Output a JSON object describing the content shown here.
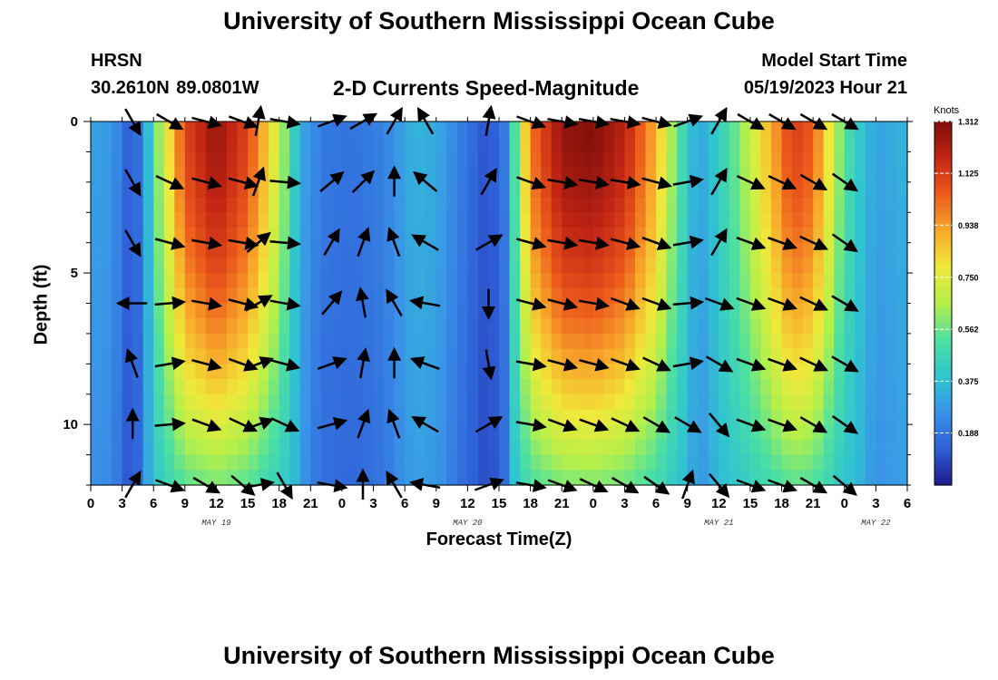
{
  "header": {
    "title": "University of Southern Mississippi Ocean Cube",
    "station": "HRSN",
    "latlon": "30.2610N  89.0801W",
    "subtitle": "2-D Currents Speed-Magnitude",
    "model_start_label": "Model Start Time",
    "model_start_value": "05/19/2023 Hour 21"
  },
  "footer": {
    "title": "University of Southern Mississippi Ocean Cube"
  },
  "chart_data": {
    "type": "heatmap",
    "title": "2-D Currents Speed-Magnitude",
    "xlabel": "Forecast Time(Z)",
    "ylabel": "Depth (ft)",
    "x_tick_labels": [
      "0",
      "3",
      "6",
      "9",
      "12",
      "15",
      "18",
      "21",
      "0",
      "3",
      "6",
      "9",
      "12",
      "15",
      "18",
      "21",
      "0",
      "3",
      "6",
      "9",
      "12",
      "15",
      "18",
      "21",
      "0",
      "3",
      "6"
    ],
    "x_hours": [
      0,
      78
    ],
    "day_labels": [
      {
        "label": "MAY 19",
        "hour": 12
      },
      {
        "label": "MAY 20",
        "hour": 36
      },
      {
        "label": "MAY 21",
        "hour": 60
      },
      {
        "label": "MAY 22",
        "hour": 75
      }
    ],
    "y_tick_labels": [
      "0",
      "5",
      "10"
    ],
    "ylim": [
      0,
      12
    ],
    "y_reversed": true,
    "colorbar": {
      "unit": "Knots",
      "ticks": [
        "1.312",
        "1.125",
        "0.938",
        "0.750",
        "0.562",
        "0.375",
        "0.188"
      ],
      "min": 0,
      "max": 1.312
    },
    "colormap": [
      "#1e1a8a",
      "#2f5fd8",
      "#3a94e8",
      "#2fc5d0",
      "#4ee0a0",
      "#b4f04a",
      "#f0e83a",
      "#f8a82a",
      "#ec5a1c",
      "#c42614",
      "#7c0d0a"
    ],
    "speed_keyframes": [
      {
        "hour": 0,
        "speed": 0.3
      },
      {
        "hour": 2,
        "speed": 0.28
      },
      {
        "hour": 4,
        "speed": 0.1
      },
      {
        "hour": 5,
        "speed": 0.25
      },
      {
        "hour": 6.5,
        "speed": 0.62
      },
      {
        "hour": 9,
        "speed": 1.1
      },
      {
        "hour": 12,
        "speed": 1.27
      },
      {
        "hour": 15,
        "speed": 1.1
      },
      {
        "hour": 18,
        "speed": 0.7
      },
      {
        "hour": 20,
        "speed": 0.33
      },
      {
        "hour": 22,
        "speed": 0.2
      },
      {
        "hour": 25,
        "speed": 0.18
      },
      {
        "hour": 28,
        "speed": 0.22
      },
      {
        "hour": 31,
        "speed": 0.35
      },
      {
        "hour": 33,
        "speed": 0.32
      },
      {
        "hour": 35,
        "speed": 0.22
      },
      {
        "hour": 38,
        "speed": 0.1
      },
      {
        "hour": 39.5,
        "speed": 0.2
      },
      {
        "hour": 42,
        "speed": 1.0
      },
      {
        "hour": 45,
        "speed": 1.27
      },
      {
        "hour": 48,
        "speed": 1.3
      },
      {
        "hour": 51,
        "speed": 1.2
      },
      {
        "hour": 54,
        "speed": 0.9
      },
      {
        "hour": 56,
        "speed": 0.55
      },
      {
        "hour": 58,
        "speed": 0.3
      },
      {
        "hour": 61,
        "speed": 0.5
      },
      {
        "hour": 64,
        "speed": 0.8
      },
      {
        "hour": 67,
        "speed": 1.12
      },
      {
        "hour": 69,
        "speed": 1.05
      },
      {
        "hour": 72,
        "speed": 0.52
      },
      {
        "hour": 75,
        "speed": 0.3
      },
      {
        "hour": 78,
        "speed": 0.35
      }
    ],
    "arrow_depths": [
      0,
      2,
      4,
      6,
      8,
      10,
      12
    ],
    "arrows": [
      {
        "hour": 23,
        "angles": [
          20,
          40,
          60,
          50,
          20,
          15,
          -10
        ]
      },
      {
        "hour": 26,
        "angles": [
          30,
          45,
          70,
          100,
          80,
          70,
          90
        ]
      },
      {
        "hour": 29,
        "angles": [
          60,
          90,
          110,
          120,
          90,
          110,
          120
        ]
      },
      {
        "hour": 32,
        "angles": [
          120,
          140,
          150,
          170,
          160,
          150,
          170
        ]
      },
      {
        "hour": 16,
        "angles": [
          80,
          70,
          40,
          30,
          20,
          20,
          10
        ]
      },
      {
        "hour": 4,
        "angles": [
          -60,
          -60,
          -60,
          180,
          110,
          90,
          60
        ]
      },
      {
        "hour": 7.5,
        "angles": [
          -30,
          -25,
          -15,
          5,
          10,
          5,
          -20
        ]
      },
      {
        "hour": 11,
        "angles": [
          -15,
          -15,
          -10,
          -10,
          -15,
          -20,
          -30
        ]
      },
      {
        "hour": 14.5,
        "angles": [
          -20,
          -15,
          -10,
          -15,
          -20,
          -25,
          -40
        ]
      },
      {
        "hour": 18.5,
        "angles": [
          -10,
          -5,
          -5,
          -10,
          -15,
          -25,
          -60
        ]
      },
      {
        "hour": 38,
        "angles": [
          80,
          60,
          30,
          -90,
          -80,
          30,
          20
        ]
      },
      {
        "hour": 42,
        "angles": [
          -20,
          -20,
          -15,
          -15,
          -10,
          -10,
          -10
        ]
      },
      {
        "hour": 45,
        "angles": [
          -10,
          -10,
          -10,
          -15,
          -15,
          -20,
          -20
        ]
      },
      {
        "hour": 48,
        "angles": [
          -10,
          -10,
          -10,
          -10,
          -15,
          -20,
          -25
        ]
      },
      {
        "hour": 51,
        "angles": [
          -10,
          -10,
          -15,
          -20,
          -20,
          -25,
          -30
        ]
      },
      {
        "hour": 54,
        "angles": [
          -15,
          -15,
          -20,
          -20,
          -25,
          -30,
          -35
        ]
      },
      {
        "hour": 57,
        "angles": [
          20,
          10,
          10,
          5,
          10,
          -30,
          70
        ]
      },
      {
        "hour": 60,
        "angles": [
          60,
          60,
          60,
          -20,
          -30,
          -50,
          -50
        ]
      },
      {
        "hour": 63,
        "angles": [
          -30,
          -25,
          -20,
          -20,
          -20,
          -20,
          -20
        ]
      },
      {
        "hour": 66,
        "angles": [
          -30,
          -25,
          -20,
          -20,
          -20,
          -20,
          -20
        ]
      },
      {
        "hour": 69,
        "angles": [
          -30,
          -30,
          -25,
          -25,
          -25,
          -30,
          -30
        ]
      },
      {
        "hour": 72,
        "angles": [
          -30,
          -35,
          -35,
          -30,
          -30,
          -35,
          -40
        ]
      }
    ]
  }
}
